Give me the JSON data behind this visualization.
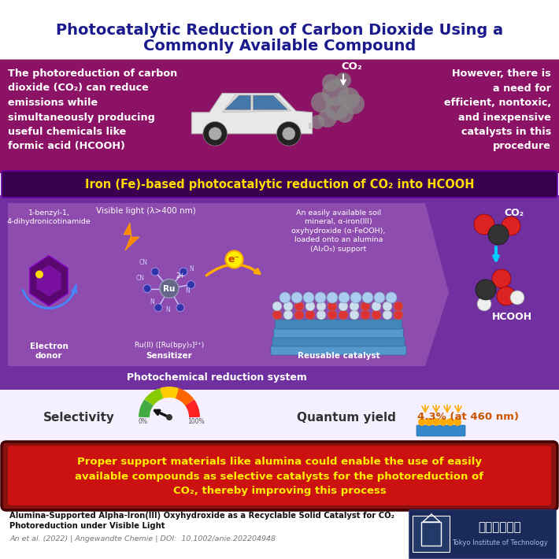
{
  "title_line1": "Photocatalytic Reduction of Carbon Dioxide Using a",
  "title_line2": "Commonly Available Compound",
  "title_color": "#1a1a8c",
  "bg_white": "#ffffff",
  "bg_purple": "#8b1265",
  "bg_mid_purple": "#7a0f78",
  "bg_dark_purple": "#4a0060",
  "bg_panel": "#7030a0",
  "section2_title": "Iron (Fe)-based photocatalytic reduction of CO₂ into HCOOH",
  "section2_title_color": "#ffdd00",
  "left_text": "The photoreduction of carbon\ndioxide (CO₂) can reduce\nemissions while\nsimultaneously producing\nuseful chemicals like\nformic acid (HCOOH)",
  "right_text": "However, there is\na need for\nefficient, nontoxic,\nand inexpensive\ncatalysts in this\nprocedure",
  "conclusion_text": "Proper support materials like alumina could enable the use of easily\navailable compounds as selective catalysts for the photoreduction of\nCO₂, thereby improving this process",
  "conclusion_bg": "#cc1111",
  "conclusion_color": "#ffee00",
  "footer_title1": "Alumina-Supported Alpha-Iron(III) Oxyhydroxide as a Recyclable Solid Catalyst for CO₂",
  "footer_title2": "Photoreduction under Visible Light",
  "footer_citation": "An et al. (2022) | Angewandte Chemie | DOI:  10.1002/anie.202204948",
  "photo_system_label": "Photochemical reduction system",
  "selectivity_label": "Selectivity",
  "quantum_yield_label": "Quantum yield",
  "quantum_yield_value": "4.3% (at 460 nm)",
  "electron_donor_label": "Electron\ndonor",
  "donor_compound": "1-benzyl-1,\n4-dihydronicotinamide",
  "visible_light_label": "Visible light (λ>400 nm)",
  "sensitizer_label": "Sensitizer",
  "sensitizer_compound": "Ru(II) ([Ru(bpy)₃]²⁺)",
  "catalyst_label": "Reusable catalyst",
  "catalyst_desc": "An easily available soil\nmineral, α-iron(III)\noxyhydroxide (α-FeOOH),\nloaded onto an alumina\n(Al₂O₃) support"
}
